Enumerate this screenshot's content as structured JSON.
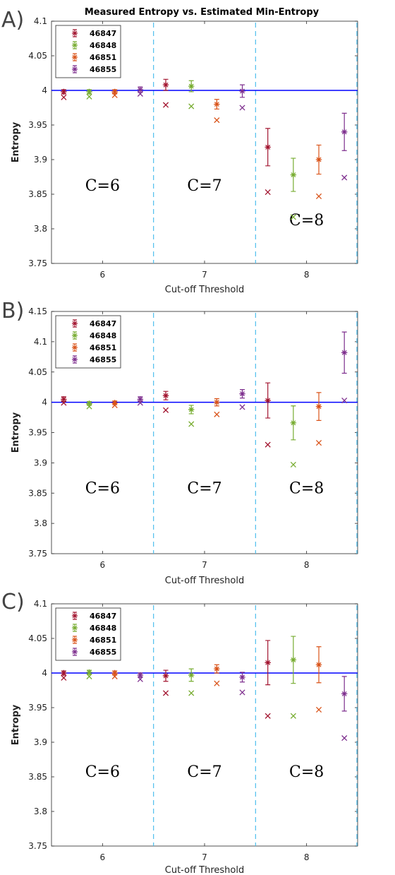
{
  "figure": {
    "title": "Measured Entropy vs. Estimated Min-Entropy",
    "colors": {
      "46847": "#a2142f",
      "46848": "#77ac30",
      "46851": "#d95319",
      "46855": "#7e2f8e",
      "reference": "#0000ff",
      "separator": "#4dbeee"
    }
  },
  "chart_data": [
    {
      "panel": "A)",
      "type": "scatter",
      "xlabel": "Cut-off Threshold",
      "ylabel": "Entropy",
      "xlim": [
        5.5,
        8.5
      ],
      "ylim": [
        3.75,
        4.1
      ],
      "xticks": [
        "6",
        "7",
        "8"
      ],
      "yticks": [
        "3.75",
        "3.8",
        "3.85",
        "3.9",
        "3.95",
        "4",
        "4.05",
        "4.1"
      ],
      "reference_line": 4,
      "separators": [
        6.5,
        7.5
      ],
      "regions": [
        "C=6",
        "C=7",
        "C=8"
      ],
      "legend": "top-left",
      "series": [
        {
          "name": "46847",
          "x": [
            5.62,
            6.62,
            7.62
          ],
          "measured": [
            3.998,
            4.008,
            3.918
          ],
          "error": [
            0.003,
            0.008,
            0.027
          ],
          "min_entropy": [
            3.99,
            3.979,
            3.853
          ]
        },
        {
          "name": "46848",
          "x": [
            5.87,
            6.87,
            7.87
          ],
          "measured": [
            3.998,
            4.006,
            3.878
          ],
          "error": [
            0.003,
            0.008,
            0.024
          ],
          "min_entropy": [
            3.991,
            3.977,
            3.817
          ]
        },
        {
          "name": "46851",
          "x": [
            6.12,
            7.12,
            8.12
          ],
          "measured": [
            3.998,
            3.98,
            3.9
          ],
          "error": [
            0.003,
            0.007,
            0.021
          ],
          "min_entropy": [
            3.993,
            3.957,
            3.847
          ]
        },
        {
          "name": "46855",
          "x": [
            6.37,
            7.37,
            8.37
          ],
          "measured": [
            4.001,
            3.999,
            3.94
          ],
          "error": [
            0.004,
            0.009,
            0.027
          ],
          "min_entropy": [
            3.995,
            3.975,
            3.874
          ]
        }
      ]
    },
    {
      "panel": "B)",
      "type": "scatter",
      "xlabel": "Cut-off Threshold",
      "ylabel": "Entropy",
      "xlim": [
        5.5,
        8.5
      ],
      "ylim": [
        3.75,
        4.15
      ],
      "xticks": [
        "6",
        "7",
        "8"
      ],
      "yticks": [
        "3.75",
        "3.8",
        "3.85",
        "3.9",
        "3.95",
        "4",
        "4.05",
        "4.1",
        "4.15"
      ],
      "reference_line": 4,
      "separators": [
        6.5,
        7.5
      ],
      "regions": [
        "C=6",
        "C=7",
        "C=8"
      ],
      "legend": "top-left",
      "series": [
        {
          "name": "46847",
          "x": [
            5.62,
            6.62,
            7.62
          ],
          "measured": [
            4.005,
            4.011,
            4.003
          ],
          "error": [
            0.004,
            0.007,
            0.029
          ],
          "min_entropy": [
            3.999,
            3.987,
            3.93
          ]
        },
        {
          "name": "46848",
          "x": [
            5.87,
            6.87,
            7.87
          ],
          "measured": [
            3.998,
            3.988,
            3.966
          ],
          "error": [
            0.003,
            0.007,
            0.028
          ],
          "min_entropy": [
            3.993,
            3.964,
            3.897
          ]
        },
        {
          "name": "46851",
          "x": [
            6.12,
            7.12,
            8.12
          ],
          "measured": [
            3.999,
            4.0,
            3.993
          ],
          "error": [
            0.003,
            0.006,
            0.023
          ],
          "min_entropy": [
            3.995,
            3.98,
            3.933
          ]
        },
        {
          "name": "46855",
          "x": [
            6.37,
            7.37,
            8.37
          ],
          "measured": [
            4.005,
            4.014,
            4.082
          ],
          "error": [
            0.004,
            0.007,
            0.034
          ],
          "min_entropy": [
            3.999,
            3.992,
            4.003
          ]
        }
      ]
    },
    {
      "panel": "C)",
      "type": "scatter",
      "xlabel": "Cut-off Threshold",
      "ylabel": "Entropy",
      "xlim": [
        5.5,
        8.5
      ],
      "ylim": [
        3.75,
        4.1
      ],
      "xticks": [
        "6",
        "7",
        "8"
      ],
      "yticks": [
        "3.75",
        "3.8",
        "3.85",
        "3.9",
        "3.95",
        "4",
        "4.05",
        "4.1"
      ],
      "reference_line": 4,
      "separators": [
        6.5,
        7.5
      ],
      "regions": [
        "C=6",
        "C=7",
        "C=8"
      ],
      "legend": "top-left",
      "series": [
        {
          "name": "46847",
          "x": [
            5.62,
            6.62,
            7.62
          ],
          "measured": [
            4.0,
            3.996,
            4.015
          ],
          "error": [
            0.003,
            0.008,
            0.032
          ],
          "min_entropy": [
            3.993,
            3.971,
            3.938
          ]
        },
        {
          "name": "46848",
          "x": [
            5.87,
            6.87,
            7.87
          ],
          "measured": [
            4.001,
            3.997,
            4.019
          ],
          "error": [
            0.003,
            0.009,
            0.034
          ],
          "min_entropy": [
            3.995,
            3.971,
            3.938
          ]
        },
        {
          "name": "46851",
          "x": [
            6.12,
            7.12,
            8.12
          ],
          "measured": [
            4.0,
            4.006,
            4.012
          ],
          "error": [
            0.003,
            0.006,
            0.026
          ],
          "min_entropy": [
            3.995,
            3.985,
            3.947
          ]
        },
        {
          "name": "46855",
          "x": [
            6.37,
            7.37,
            8.37
          ],
          "measured": [
            3.997,
            3.994,
            3.97
          ],
          "error": [
            0.003,
            0.007,
            0.025
          ],
          "min_entropy": [
            3.991,
            3.972,
            3.906
          ]
        }
      ]
    }
  ]
}
